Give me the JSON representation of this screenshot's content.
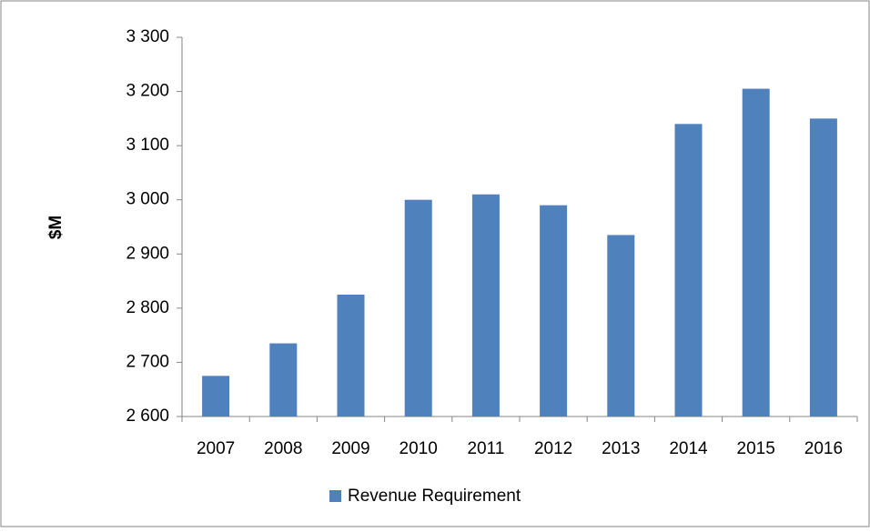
{
  "chart_data": {
    "type": "bar",
    "y_label": "$M",
    "categories": [
      "2007",
      "2008",
      "2009",
      "2010",
      "2011",
      "2012",
      "2013",
      "2014",
      "2015",
      "2016"
    ],
    "series": [
      {
        "name": "Revenue Requirement",
        "color": "#4f81bd",
        "values": [
          2675,
          2735,
          2825,
          3000,
          3010,
          2990,
          2935,
          3140,
          3205,
          3150
        ]
      }
    ],
    "ylim": [
      2600,
      3300
    ],
    "yticks": [
      {
        "value": 2600,
        "label": "2 600"
      },
      {
        "value": 2700,
        "label": "2 700"
      },
      {
        "value": 2800,
        "label": "2 800"
      },
      {
        "value": 2900,
        "label": "2 900"
      },
      {
        "value": 3000,
        "label": "3 000"
      },
      {
        "value": 3100,
        "label": "3 100"
      },
      {
        "value": 3200,
        "label": "3 200"
      },
      {
        "value": 3300,
        "label": "3 300"
      }
    ],
    "grid": false,
    "legend": "bottom"
  }
}
